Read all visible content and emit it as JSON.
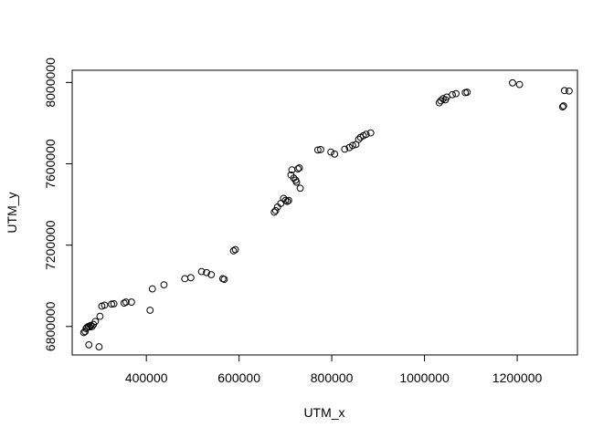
{
  "chart_data": {
    "type": "scatter",
    "title": "",
    "xlabel": "UTM_x",
    "ylabel": "UTM_y",
    "xlim": [
      240000,
      1330000
    ],
    "ylim": [
      6660000,
      8060000
    ],
    "xticks": [
      400000,
      600000,
      800000,
      1000000,
      1200000
    ],
    "xtick_labels": [
      "400000",
      "600000",
      "800000",
      "1000000",
      "1200000"
    ],
    "yticks": [
      6800000,
      7200000,
      7600000,
      8000000
    ],
    "ytick_labels": [
      "6800000",
      "7200000",
      "7600000",
      "8000000"
    ],
    "marker": "open-circle",
    "grid": false,
    "legend": "none",
    "series": [
      {
        "points": [
          [
            265000,
            6770000
          ],
          [
            268000,
            6775000
          ],
          [
            270000,
            6790000
          ],
          [
            272000,
            6795000
          ],
          [
            275000,
            6800000
          ],
          [
            278000,
            6798000
          ],
          [
            280000,
            6805000
          ],
          [
            283000,
            6800000
          ],
          [
            286000,
            6810000
          ],
          [
            290000,
            6825000
          ],
          [
            276000,
            6710000
          ],
          [
            298000,
            6700000
          ],
          [
            300000,
            6850000
          ],
          [
            304000,
            6900000
          ],
          [
            310000,
            6905000
          ],
          [
            325000,
            6910000
          ],
          [
            330000,
            6912000
          ],
          [
            352000,
            6915000
          ],
          [
            356000,
            6920000
          ],
          [
            368000,
            6920000
          ],
          [
            408000,
            6880000
          ],
          [
            413000,
            6985000
          ],
          [
            438000,
            7005000
          ],
          [
            483000,
            7035000
          ],
          [
            496000,
            7040000
          ],
          [
            519000,
            7070000
          ],
          [
            530000,
            7065000
          ],
          [
            540000,
            7055000
          ],
          [
            565000,
            7035000
          ],
          [
            568000,
            7032000
          ],
          [
            588000,
            7172000
          ],
          [
            592000,
            7178000
          ],
          [
            676000,
            7362000
          ],
          [
            679000,
            7370000
          ],
          [
            683000,
            7388000
          ],
          [
            690000,
            7405000
          ],
          [
            696000,
            7430000
          ],
          [
            700000,
            7420000
          ],
          [
            704000,
            7415000
          ],
          [
            707000,
            7420000
          ],
          [
            712000,
            7545000
          ],
          [
            714000,
            7570000
          ],
          [
            718000,
            7530000
          ],
          [
            722000,
            7520000
          ],
          [
            724000,
            7510000
          ],
          [
            727000,
            7575000
          ],
          [
            730000,
            7580000
          ],
          [
            732000,
            7480000
          ],
          [
            770000,
            7668000
          ],
          [
            776000,
            7670000
          ],
          [
            798000,
            7658000
          ],
          [
            806000,
            7648000
          ],
          [
            828000,
            7672000
          ],
          [
            838000,
            7680000
          ],
          [
            845000,
            7690000
          ],
          [
            852000,
            7695000
          ],
          [
            858000,
            7720000
          ],
          [
            862000,
            7730000
          ],
          [
            868000,
            7738000
          ],
          [
            874000,
            7745000
          ],
          [
            884000,
            7752000
          ],
          [
            1032000,
            7900000
          ],
          [
            1035000,
            7910000
          ],
          [
            1040000,
            7920000
          ],
          [
            1045000,
            7915000
          ],
          [
            1048000,
            7928000
          ],
          [
            1060000,
            7940000
          ],
          [
            1068000,
            7945000
          ],
          [
            1088000,
            7950000
          ],
          [
            1092000,
            7952000
          ],
          [
            1190000,
            7998000
          ],
          [
            1205000,
            7990000
          ],
          [
            1298000,
            7880000
          ],
          [
            1300000,
            7885000
          ],
          [
            1302000,
            7960000
          ],
          [
            1312000,
            7958000
          ]
        ]
      }
    ]
  }
}
